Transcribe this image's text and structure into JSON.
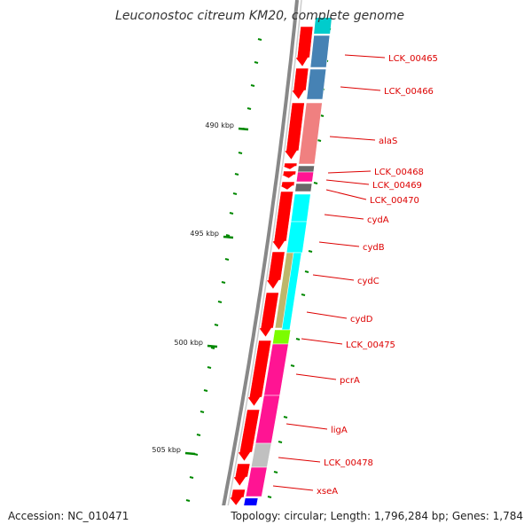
{
  "title": "Leuconostoc citreum KM20, complete genome",
  "footer": {
    "accession": "Accession: NC_010471",
    "topology": "Topology: circular; Length: 1,796,284 bp; Genes: 1,784"
  },
  "ticks": [
    "490 kbp",
    "495 kbp",
    "500 kbp",
    "505 kbp"
  ],
  "genes": [
    {
      "name": "LCK_00465",
      "color": "#4682b4"
    },
    {
      "name": "LCK_00466",
      "color": "#4682b4"
    },
    {
      "name": "alaS",
      "color": "#f08080"
    },
    {
      "name": "LCK_00468",
      "color": "#696969"
    },
    {
      "name": "LCK_00469",
      "color": "#ff1493"
    },
    {
      "name": "LCK_00470",
      "color": "#696969"
    },
    {
      "name": "cydA",
      "color": "#00ffff"
    },
    {
      "name": "cydB",
      "color": "#00ffff"
    },
    {
      "name": "cydC",
      "color": "#bdb76b"
    },
    {
      "name": "cydD",
      "color": "#00ffff"
    },
    {
      "name": "LCK_00475",
      "color": "#7cfc00"
    },
    {
      "name": "pcrA",
      "color": "#ff1493"
    },
    {
      "name": "ligA",
      "color": "#ff1493"
    },
    {
      "name": "LCK_00478",
      "color": "#c0c0c0"
    },
    {
      "name": "xseA",
      "color": "#ff1493"
    }
  ],
  "colors": {
    "cds": "#ff0000",
    "backbone": "#888888",
    "gc_skew": "#008800",
    "label": "#dd0000"
  }
}
